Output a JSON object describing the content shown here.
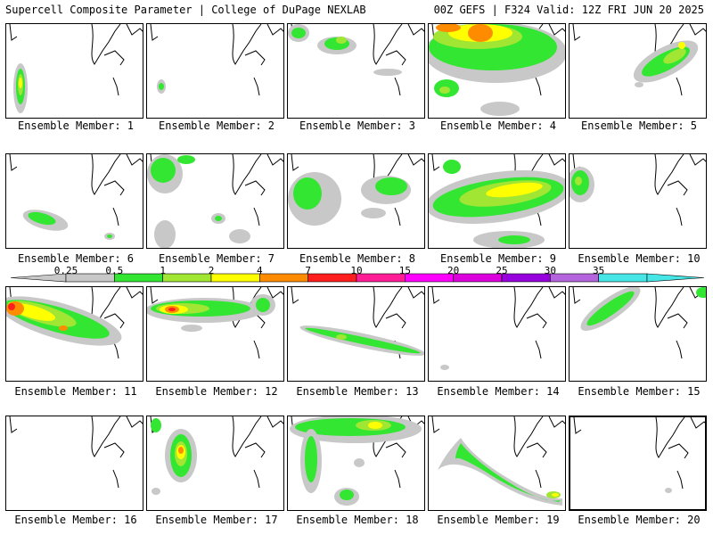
{
  "header": {
    "title_left": "Supercell Composite Parameter | College of DuPage NEXLAB",
    "title_right": "00Z GEFS | F324 Valid: 12Z FRI JUN 20 2025"
  },
  "colorbar": {
    "thresholds": [
      "0.25",
      "0.5",
      "1",
      "2",
      "4",
      "7",
      "10",
      "15",
      "20",
      "25",
      "30",
      "35"
    ],
    "colors": [
      "#c8c8c8",
      "#32e632",
      "#a0e632",
      "#ffff00",
      "#ff8c00",
      "#ff1e1e",
      "#ff1e96",
      "#ff00ff",
      "#dc00dc",
      "#9600dc",
      "#b464dc",
      "#46e6e6"
    ]
  },
  "members": [
    {
      "label": "Ensemble Member: 1"
    },
    {
      "label": "Ensemble Member: 2"
    },
    {
      "label": "Ensemble Member: 3"
    },
    {
      "label": "Ensemble Member: 4"
    },
    {
      "label": "Ensemble Member: 5"
    },
    {
      "label": "Ensemble Member: 6"
    },
    {
      "label": "Ensemble Member: 7"
    },
    {
      "label": "Ensemble Member: 8"
    },
    {
      "label": "Ensemble Member: 9"
    },
    {
      "label": "Ensemble Member: 10"
    },
    {
      "label": "Ensemble Member: 11"
    },
    {
      "label": "Ensemble Member: 12"
    },
    {
      "label": "Ensemble Member: 13"
    },
    {
      "label": "Ensemble Member: 14"
    },
    {
      "label": "Ensemble Member: 15"
    },
    {
      "label": "Ensemble Member: 16"
    },
    {
      "label": "Ensemble Member: 17"
    },
    {
      "label": "Ensemble Member: 18"
    },
    {
      "label": "Ensemble Member: 19"
    },
    {
      "label": "Ensemble Member: 20"
    }
  ]
}
